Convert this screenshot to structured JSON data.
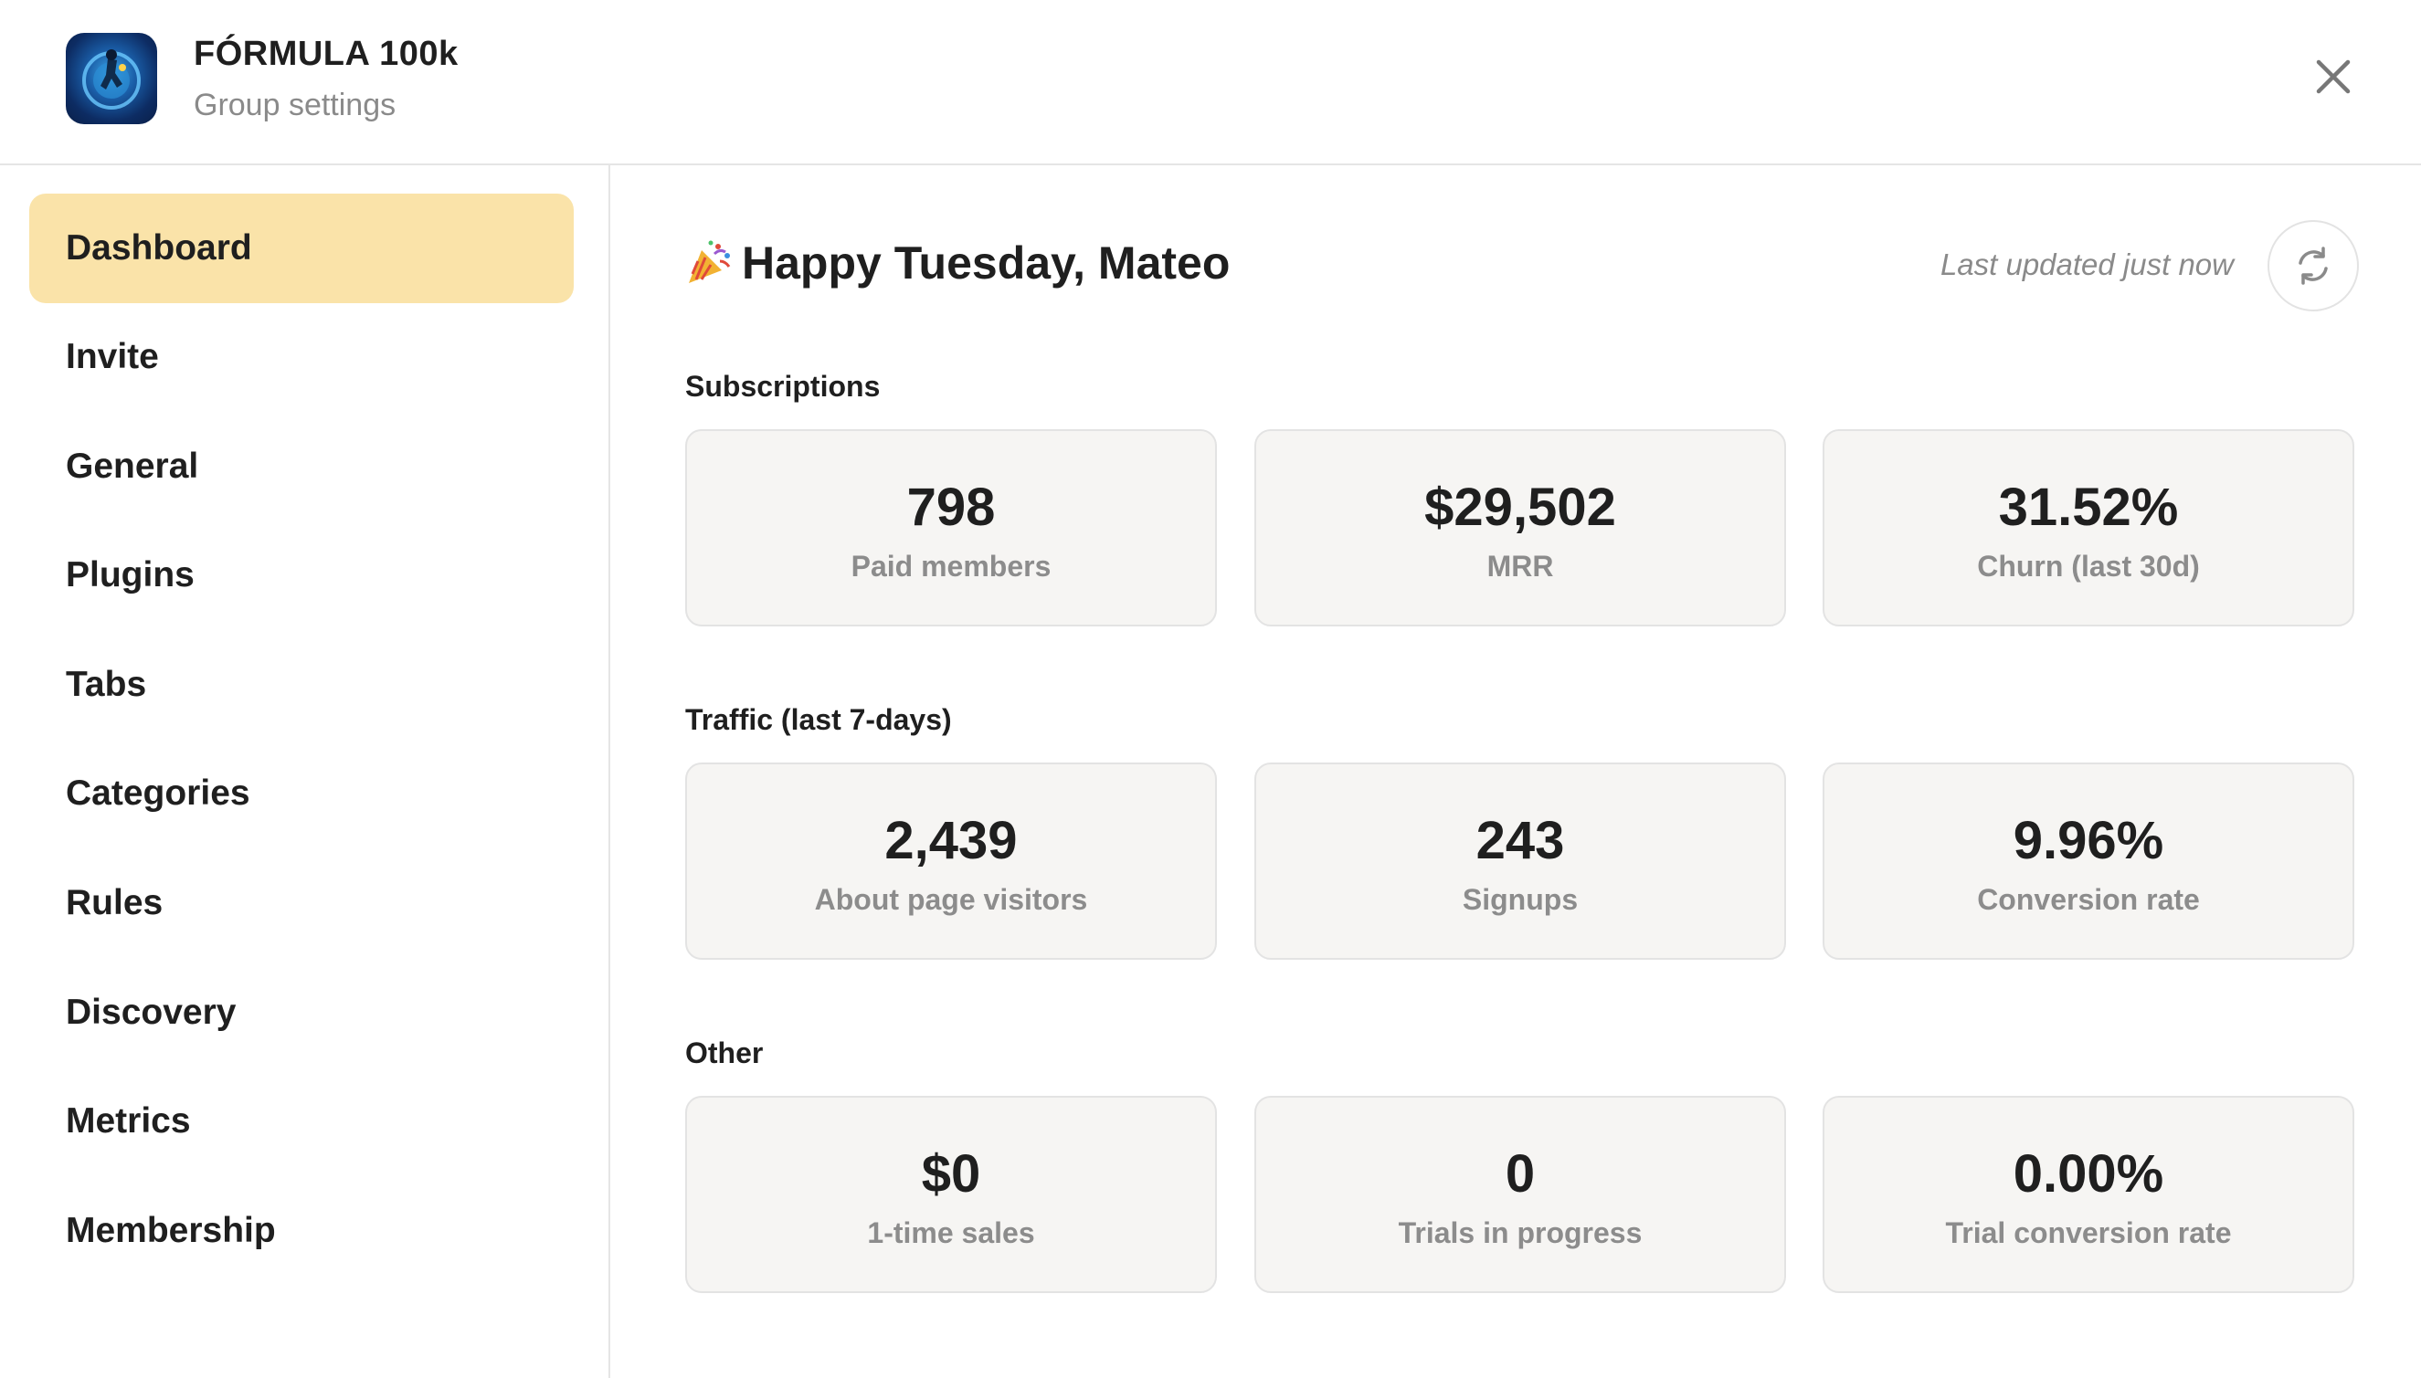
{
  "header": {
    "title": "FÓRMULA 100k",
    "subtitle": "Group settings",
    "logo_icon": "group-logo-icon",
    "close_icon": "close-icon"
  },
  "sidebar": {
    "active": "Dashboard",
    "items": [
      {
        "label": "Dashboard"
      },
      {
        "label": "Invite"
      },
      {
        "label": "General"
      },
      {
        "label": "Plugins"
      },
      {
        "label": "Tabs"
      },
      {
        "label": "Categories"
      },
      {
        "label": "Rules"
      },
      {
        "label": "Discovery"
      },
      {
        "label": "Metrics"
      },
      {
        "label": "Membership"
      }
    ]
  },
  "main": {
    "greeting_emoji_icon": "party-popper-icon",
    "greeting": "Happy Tuesday, Mateo",
    "last_updated": "Last updated just now",
    "refresh_icon": "refresh-icon",
    "sections": [
      {
        "title": "Subscriptions",
        "cards": [
          {
            "value": "798",
            "label": "Paid members"
          },
          {
            "value": "$29,502",
            "label": "MRR"
          },
          {
            "value": "31.52%",
            "label": "Churn (last 30d)"
          }
        ]
      },
      {
        "title": "Traffic (last 7-days)",
        "cards": [
          {
            "value": "2,439",
            "label": "About page visitors"
          },
          {
            "value": "243",
            "label": "Signups"
          },
          {
            "value": "9.96%",
            "label": "Conversion rate"
          }
        ]
      },
      {
        "title": "Other",
        "cards": [
          {
            "value": "$0",
            "label": "1-time sales"
          },
          {
            "value": "0",
            "label": "Trials in progress"
          },
          {
            "value": "0.00%",
            "label": "Trial conversion rate"
          }
        ]
      }
    ]
  },
  "colors": {
    "active_nav_bg": "#fae3a9",
    "card_bg": "#f6f5f3",
    "border": "#e3e3e3",
    "muted_text": "#8a8a8a"
  }
}
